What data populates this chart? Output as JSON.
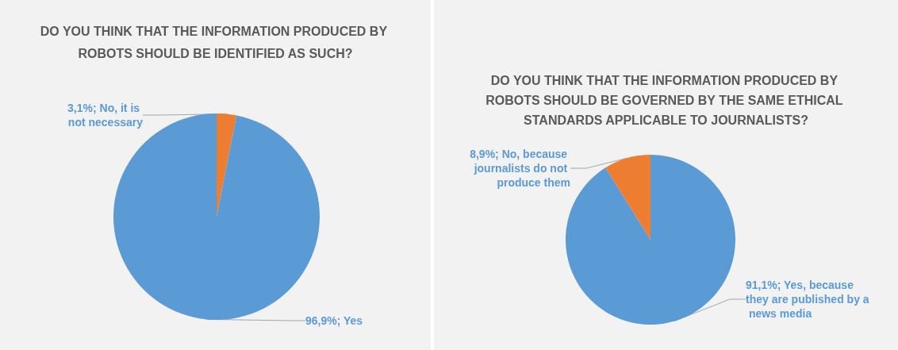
{
  "chart_data": [
    {
      "type": "pie",
      "title": "DO YOU THINK THAT THE INFORMATION PRODUCED BY ROBOTS SHOULD BE IDENTIFIED AS SUCH?",
      "categories": [
        "No, it is not necessary",
        "Yes"
      ],
      "values": [
        3.1,
        96.9
      ],
      "colors": [
        "#ed7d31",
        "#5b9bd5"
      ],
      "value_labels": [
        "3,1%;",
        "96,9%;"
      ],
      "legend": false
    },
    {
      "type": "pie",
      "title": "DO YOU THINK THAT THE INFORMATION PRODUCED BY ROBOTS SHOULD BE GOVERNED BY THE SAME ETHICAL STANDARDS APPLICABLE TO JOURNALISTS?",
      "categories": [
        "Yes, because they are published by a news media",
        "No, because journalists do not produce them"
      ],
      "values": [
        91.1,
        8.9
      ],
      "colors": [
        "#5b9bd5",
        "#ed7d31"
      ],
      "value_labels": [
        "91,1%;",
        "8,9%;"
      ],
      "legend": false
    }
  ]
}
